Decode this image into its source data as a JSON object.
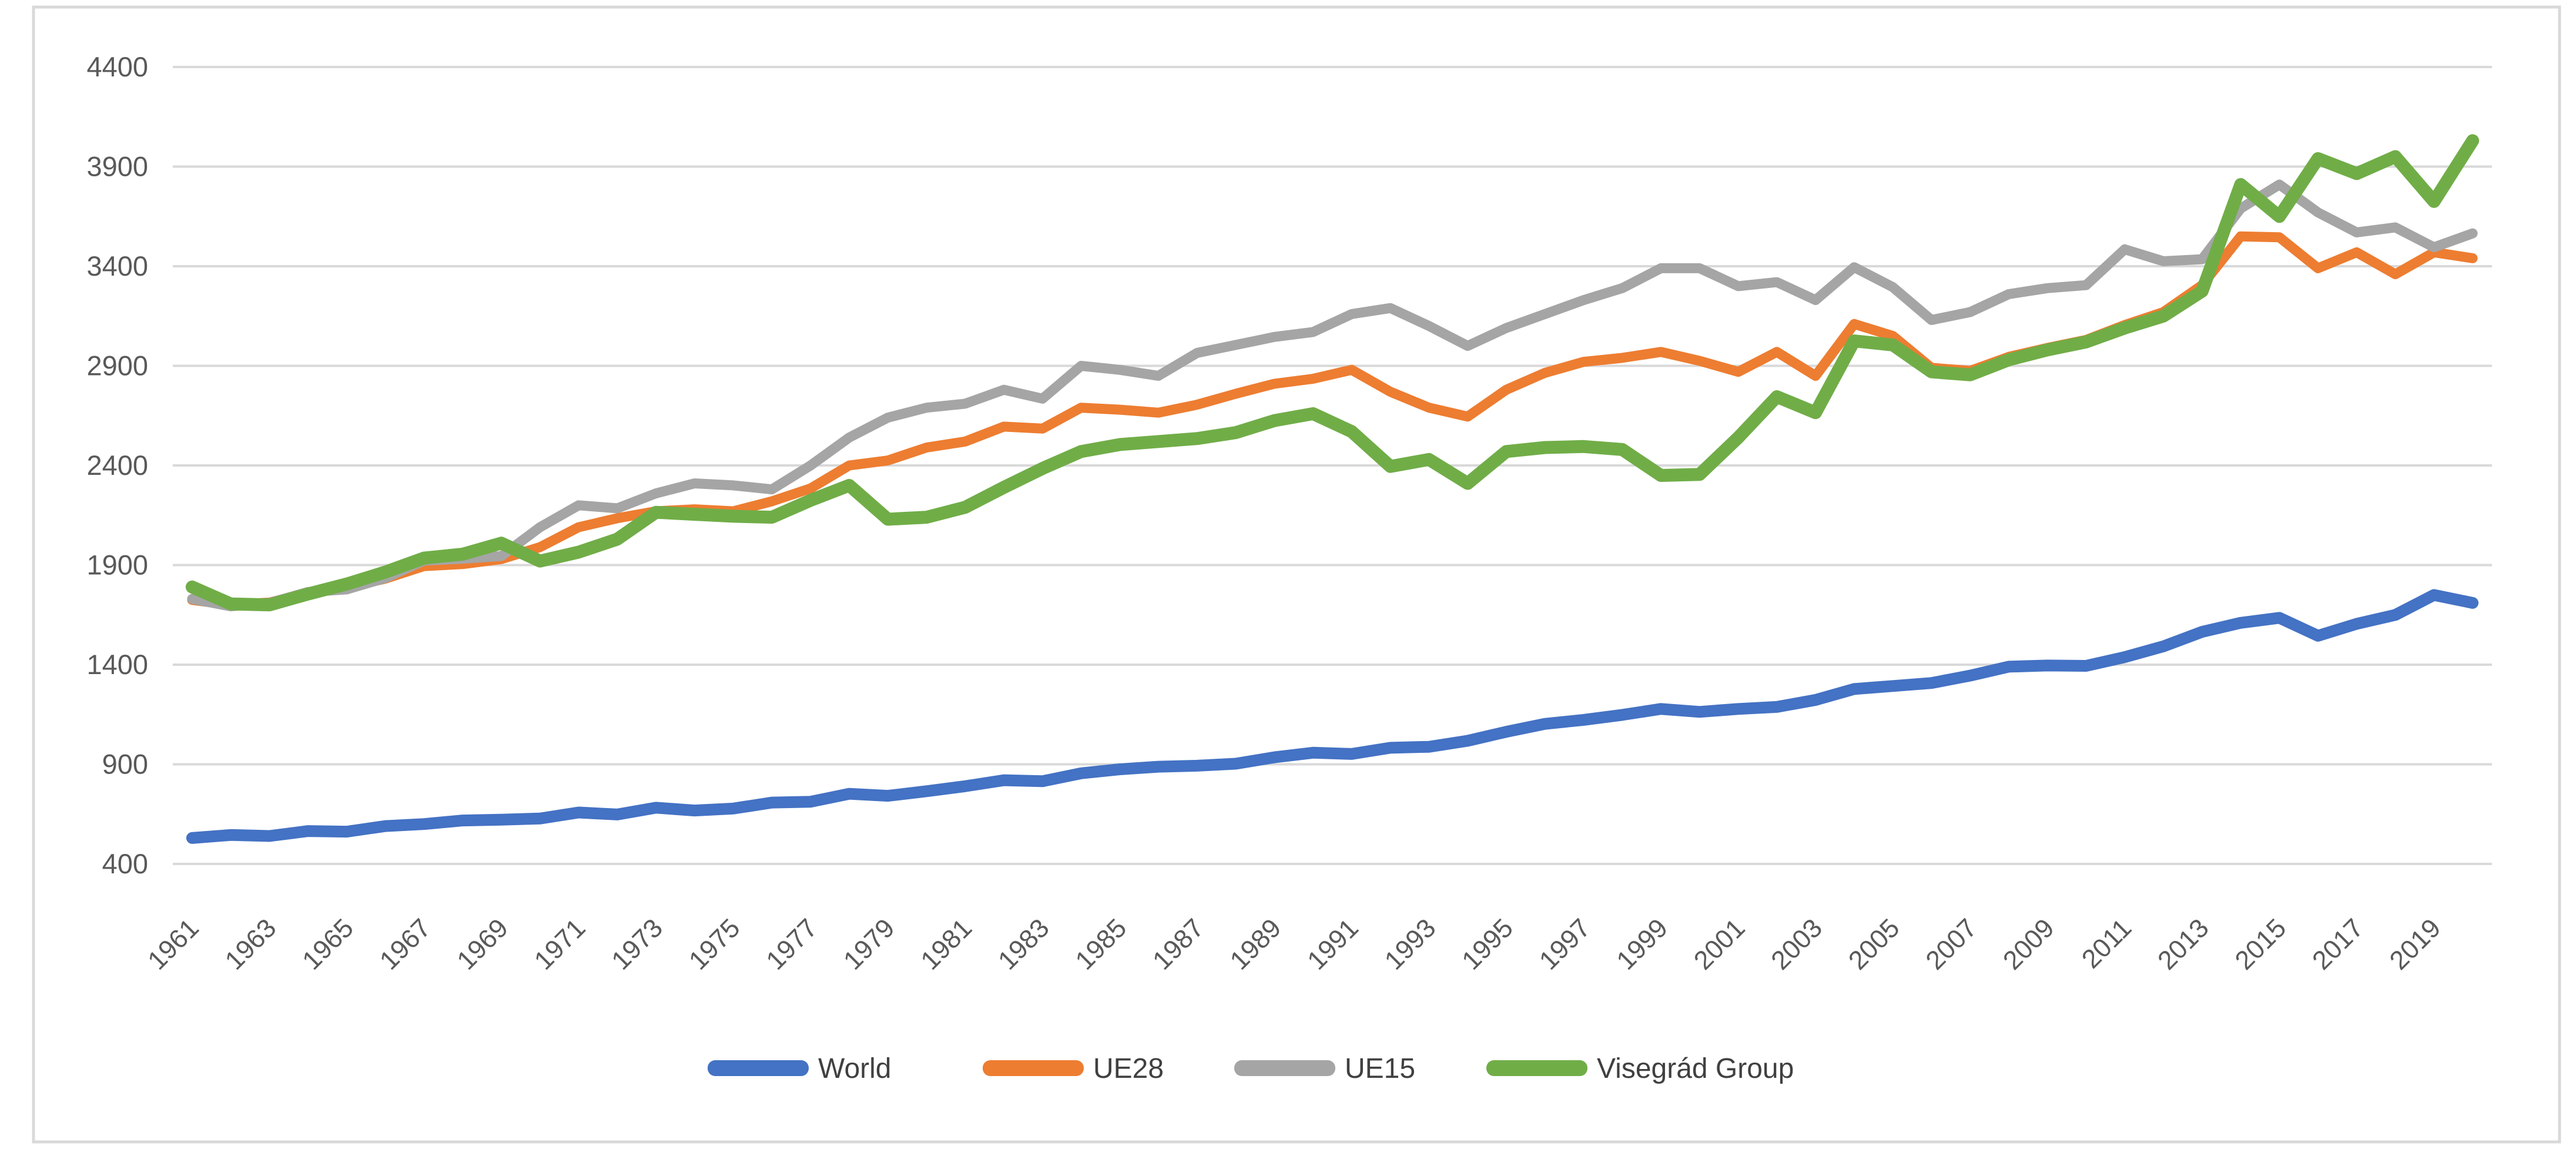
{
  "chart_data": {
    "type": "line",
    "title": "",
    "xlabel": "",
    "ylabel": "",
    "ylim": [
      400,
      4400
    ],
    "y_ticks": [
      400,
      900,
      1400,
      1900,
      2400,
      2900,
      3400,
      3900,
      4400
    ],
    "grid": true,
    "legend_position": "bottom",
    "x": [
      1961,
      1962,
      1963,
      1964,
      1965,
      1966,
      1967,
      1968,
      1969,
      1970,
      1971,
      1972,
      1973,
      1974,
      1975,
      1976,
      1977,
      1978,
      1979,
      1980,
      1981,
      1982,
      1983,
      1984,
      1985,
      1986,
      1987,
      1988,
      1989,
      1990,
      1991,
      1992,
      1993,
      1994,
      1995,
      1996,
      1997,
      1998,
      1999,
      2000,
      2001,
      2002,
      2003,
      2004,
      2005,
      2006,
      2007,
      2008,
      2009,
      2010,
      2011,
      2012,
      2013,
      2014,
      2015,
      2016,
      2017,
      2018,
      2019,
      2020
    ],
    "x_tick_labels": [
      "1961",
      "1963",
      "1965",
      "1967",
      "1969",
      "1971",
      "1973",
      "1975",
      "1977",
      "1979",
      "1981",
      "1983",
      "1985",
      "1987",
      "1989",
      "1991",
      "1993",
      "1995",
      "1997",
      "1999",
      "2001",
      "2003",
      "2005",
      "2007",
      "2009",
      "2011",
      "2013",
      "2015",
      "2017",
      "2019"
    ],
    "series": [
      {
        "name": "World",
        "color": "#4472C4",
        "values": [
          530,
          545,
          540,
          565,
          562,
          590,
          600,
          618,
          622,
          628,
          658,
          648,
          682,
          668,
          678,
          708,
          712,
          752,
          742,
          765,
          790,
          820,
          815,
          855,
          875,
          888,
          893,
          903,
          935,
          958,
          952,
          983,
          988,
          1018,
          1063,
          1103,
          1123,
          1148,
          1178,
          1163,
          1178,
          1188,
          1223,
          1278,
          1293,
          1308,
          1345,
          1390,
          1396,
          1394,
          1438,
          1492,
          1565,
          1610,
          1635,
          1545,
          1605,
          1650,
          1750,
          1710
        ]
      },
      {
        "name": "UE28",
        "color": "#ED7D31",
        "values": [
          1725,
          1700,
          1712,
          1760,
          1788,
          1832,
          1895,
          1905,
          1930,
          1990,
          2090,
          2135,
          2170,
          2180,
          2170,
          2220,
          2285,
          2400,
          2425,
          2490,
          2520,
          2595,
          2585,
          2690,
          2680,
          2665,
          2705,
          2760,
          2810,
          2835,
          2880,
          2770,
          2690,
          2645,
          2780,
          2865,
          2920,
          2940,
          2970,
          2925,
          2870,
          2970,
          2850,
          3110,
          3050,
          2890,
          2875,
          2945,
          2990,
          3030,
          3105,
          3170,
          3305,
          3550,
          3545,
          3390,
          3470,
          3360,
          3470,
          3440
        ]
      },
      {
        "name": "UE15",
        "color": "#A5A5A5",
        "values": [
          1730,
          1693,
          1710,
          1765,
          1778,
          1835,
          1923,
          1932,
          1945,
          2090,
          2200,
          2185,
          2260,
          2310,
          2300,
          2280,
          2400,
          2540,
          2640,
          2690,
          2710,
          2780,
          2735,
          2900,
          2880,
          2850,
          2965,
          3005,
          3045,
          3070,
          3160,
          3190,
          3100,
          3000,
          3090,
          3160,
          3230,
          3290,
          3390,
          3390,
          3300,
          3320,
          3230,
          3395,
          3295,
          3130,
          3170,
          3260,
          3290,
          3305,
          3485,
          3425,
          3435,
          3690,
          3810,
          3670,
          3570,
          3595,
          3495,
          3565
        ]
      },
      {
        "name": "Visegrád Group",
        "color": "#70AD47",
        "values": [
          1790,
          1705,
          1700,
          1755,
          1805,
          1865,
          1935,
          1955,
          2010,
          1920,
          1965,
          2030,
          2165,
          2155,
          2145,
          2140,
          2225,
          2300,
          2130,
          2140,
          2190,
          2290,
          2385,
          2470,
          2505,
          2520,
          2535,
          2565,
          2625,
          2660,
          2570,
          2395,
          2430,
          2310,
          2470,
          2490,
          2495,
          2480,
          2350,
          2355,
          2540,
          2745,
          2665,
          3025,
          3005,
          2870,
          2855,
          2930,
          2980,
          3020,
          3090,
          3150,
          3275,
          3810,
          3650,
          3940,
          3865,
          3950,
          3725,
          4030
        ]
      }
    ]
  },
  "frame": {
    "background": "#FFFFFF",
    "border_color": "#D9D9D9",
    "gridline_color": "#D9D9D9",
    "axis_text_color": "#595959"
  }
}
